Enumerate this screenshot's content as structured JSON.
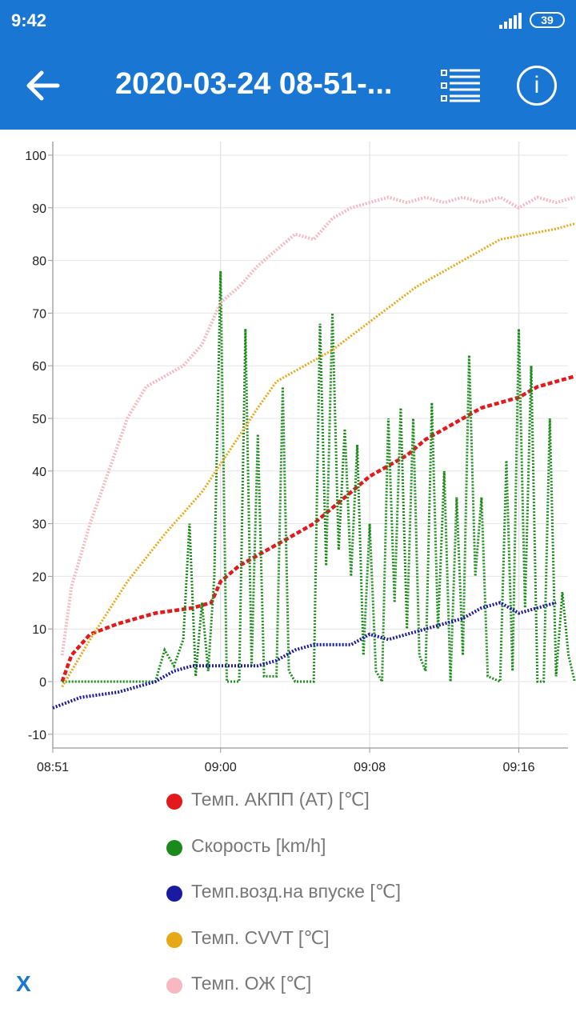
{
  "status_bar": {
    "time": "9:42",
    "battery": "39",
    "icons": [
      "signal-icon",
      "battery-icon"
    ]
  },
  "app_bar": {
    "title": "2020-03-24 08-51-...",
    "icons": [
      "back-arrow-icon",
      "list-icon",
      "info-icon"
    ],
    "info_label": "i"
  },
  "chart_data": {
    "type": "line",
    "title": "",
    "xlabel": "",
    "ylabel": "",
    "x_ticks": [
      "08:51",
      "09:00",
      "09:08",
      "09:16"
    ],
    "y_ticks": [
      100,
      90,
      80,
      70,
      60,
      50,
      40,
      30,
      20,
      10,
      0,
      -10
    ],
    "x_range": [
      "08:51",
      "09:19"
    ],
    "ylim": [
      -12,
      102
    ],
    "grid": true,
    "legend_placement": "bottom",
    "series": [
      {
        "name": "Темп. АКПП (AT) [℃]",
        "color": "#e31a1c",
        "style": "dashed-thick",
        "points": [
          [
            "08:51:30",
            0
          ],
          [
            "08:52:00",
            5
          ],
          [
            "08:53:00",
            9
          ],
          [
            "08:54:30",
            11
          ],
          [
            "08:55:30",
            12
          ],
          [
            "08:56:30",
            13
          ],
          [
            "08:58:30",
            14
          ],
          [
            "08:59:30",
            15
          ],
          [
            "09:00:00",
            19
          ],
          [
            "09:01:00",
            22
          ],
          [
            "09:02:00",
            24
          ],
          [
            "09:03:00",
            26
          ],
          [
            "09:04:00",
            28
          ],
          [
            "09:05:00",
            30
          ],
          [
            "09:06:00",
            33
          ],
          [
            "09:07:00",
            36
          ],
          [
            "09:08:00",
            39
          ],
          [
            "09:09:00",
            41
          ],
          [
            "09:10:00",
            43
          ],
          [
            "09:11:00",
            46
          ],
          [
            "09:12:00",
            48
          ],
          [
            "09:13:00",
            50
          ],
          [
            "09:14:00",
            52
          ],
          [
            "09:15:00",
            53
          ],
          [
            "09:16:00",
            54
          ],
          [
            "09:17:00",
            56
          ],
          [
            "09:18:00",
            57
          ],
          [
            "09:19:00",
            58
          ]
        ]
      },
      {
        "name": "Скорость [km/h]",
        "color": "#1a8a1a",
        "style": "dotted",
        "points": [
          [
            "08:51:30",
            0
          ],
          [
            "08:56:30",
            0
          ],
          [
            "08:57:00",
            6
          ],
          [
            "08:57:30",
            3
          ],
          [
            "08:58:00",
            8
          ],
          [
            "08:58:20",
            30
          ],
          [
            "08:58:40",
            1
          ],
          [
            "08:59:00",
            15
          ],
          [
            "08:59:20",
            2
          ],
          [
            "08:59:40",
            20
          ],
          [
            "09:00:00",
            78
          ],
          [
            "09:00:20",
            0
          ],
          [
            "09:01:00",
            0
          ],
          [
            "09:01:20",
            67
          ],
          [
            "09:01:40",
            3
          ],
          [
            "09:02:00",
            47
          ],
          [
            "09:02:20",
            1
          ],
          [
            "09:03:00",
            1
          ],
          [
            "09:03:20",
            56
          ],
          [
            "09:03:40",
            2
          ],
          [
            "09:04:00",
            0
          ],
          [
            "09:05:00",
            0
          ],
          [
            "09:05:20",
            68
          ],
          [
            "09:05:40",
            22
          ],
          [
            "09:06:00",
            70
          ],
          [
            "09:06:20",
            25
          ],
          [
            "09:06:40",
            48
          ],
          [
            "09:07:00",
            20
          ],
          [
            "09:07:20",
            45
          ],
          [
            "09:07:40",
            5
          ],
          [
            "09:08:00",
            30
          ],
          [
            "09:08:20",
            2
          ],
          [
            "09:08:40",
            0
          ],
          [
            "09:09:00",
            50
          ],
          [
            "09:09:20",
            15
          ],
          [
            "09:09:40",
            52
          ],
          [
            "09:10:00",
            10
          ],
          [
            "09:10:20",
            50
          ],
          [
            "09:10:40",
            5
          ],
          [
            "09:11:00",
            2
          ],
          [
            "09:11:20",
            53
          ],
          [
            "09:11:40",
            10
          ],
          [
            "09:12:00",
            40
          ],
          [
            "09:12:20",
            0
          ],
          [
            "09:12:40",
            35
          ],
          [
            "09:13:00",
            5
          ],
          [
            "09:13:20",
            62
          ],
          [
            "09:13:40",
            20
          ],
          [
            "09:14:00",
            35
          ],
          [
            "09:14:20",
            1
          ],
          [
            "09:15:00",
            0
          ],
          [
            "09:15:20",
            42
          ],
          [
            "09:15:40",
            2
          ],
          [
            "09:16:00",
            67
          ],
          [
            "09:16:20",
            14
          ],
          [
            "09:16:40",
            60
          ],
          [
            "09:17:00",
            0
          ],
          [
            "09:17:20",
            0
          ],
          [
            "09:17:40",
            50
          ],
          [
            "09:18:00",
            1
          ],
          [
            "09:18:20",
            17
          ],
          [
            "09:18:40",
            5
          ],
          [
            "09:19:00",
            0
          ]
        ]
      },
      {
        "name": "Темп.возд.на впуске [℃]",
        "color": "#1a1aa0",
        "style": "dotted-thick",
        "points": [
          [
            "08:51:00",
            -5
          ],
          [
            "08:52:30",
            -3
          ],
          [
            "08:54:30",
            -2
          ],
          [
            "08:56:30",
            0
          ],
          [
            "08:57:30",
            2
          ],
          [
            "08:58:30",
            3
          ],
          [
            "09:00:00",
            3
          ],
          [
            "09:02:00",
            3
          ],
          [
            "09:03:00",
            4
          ],
          [
            "09:04:00",
            6
          ],
          [
            "09:05:00",
            7
          ],
          [
            "09:06:00",
            7
          ],
          [
            "09:07:00",
            7
          ],
          [
            "09:08:00",
            9
          ],
          [
            "09:09:00",
            8
          ],
          [
            "09:10:00",
            9
          ],
          [
            "09:11:00",
            10
          ],
          [
            "09:12:00",
            11
          ],
          [
            "09:13:00",
            12
          ],
          [
            "09:14:00",
            14
          ],
          [
            "09:15:00",
            15
          ],
          [
            "09:16:00",
            13
          ],
          [
            "09:17:00",
            14
          ],
          [
            "09:18:00",
            15
          ]
        ]
      },
      {
        "name": "Темп. CVVT [℃]",
        "color": "#e6a817",
        "style": "dotted",
        "points": [
          [
            "08:51:30",
            -1
          ],
          [
            "08:53:00",
            8
          ],
          [
            "08:55:00",
            19
          ],
          [
            "08:57:00",
            28
          ],
          [
            "08:59:00",
            36
          ],
          [
            "09:00:30",
            44
          ],
          [
            "09:02:00",
            52
          ],
          [
            "09:03:00",
            57
          ],
          [
            "09:04:30",
            60
          ],
          [
            "09:06:00",
            63
          ],
          [
            "09:07:30",
            67
          ],
          [
            "09:09:00",
            71
          ],
          [
            "09:10:30",
            75
          ],
          [
            "09:12:00",
            78
          ],
          [
            "09:13:30",
            81
          ],
          [
            "09:15:00",
            84
          ],
          [
            "09:16:30",
            85
          ],
          [
            "09:18:00",
            86
          ],
          [
            "09:19:00",
            87
          ]
        ]
      },
      {
        "name": "Темп. ОЖ [℃]",
        "color": "#f7b8c2",
        "style": "dotted-thick",
        "points": [
          [
            "08:51:30",
            5
          ],
          [
            "08:52:00",
            18
          ],
          [
            "08:53:00",
            30
          ],
          [
            "08:54:00",
            40
          ],
          [
            "08:55:00",
            50
          ],
          [
            "08:56:00",
            56
          ],
          [
            "08:57:00",
            58
          ],
          [
            "08:58:00",
            60
          ],
          [
            "08:59:00",
            64
          ],
          [
            "09:00:00",
            72
          ],
          [
            "09:01:00",
            75
          ],
          [
            "09:02:00",
            79
          ],
          [
            "09:03:00",
            82
          ],
          [
            "09:04:00",
            85
          ],
          [
            "09:05:00",
            84
          ],
          [
            "09:06:00",
            88
          ],
          [
            "09:07:00",
            90
          ],
          [
            "09:08:00",
            91
          ],
          [
            "09:09:00",
            92
          ],
          [
            "09:10:00",
            91
          ],
          [
            "09:11:00",
            92
          ],
          [
            "09:12:00",
            91
          ],
          [
            "09:13:00",
            92
          ],
          [
            "09:14:00",
            91
          ],
          [
            "09:15:00",
            92
          ],
          [
            "09:16:00",
            90
          ],
          [
            "09:17:00",
            92
          ],
          [
            "09:18:00",
            91
          ],
          [
            "09:19:00",
            92
          ]
        ]
      }
    ]
  },
  "footer": {
    "close_label": "X"
  }
}
